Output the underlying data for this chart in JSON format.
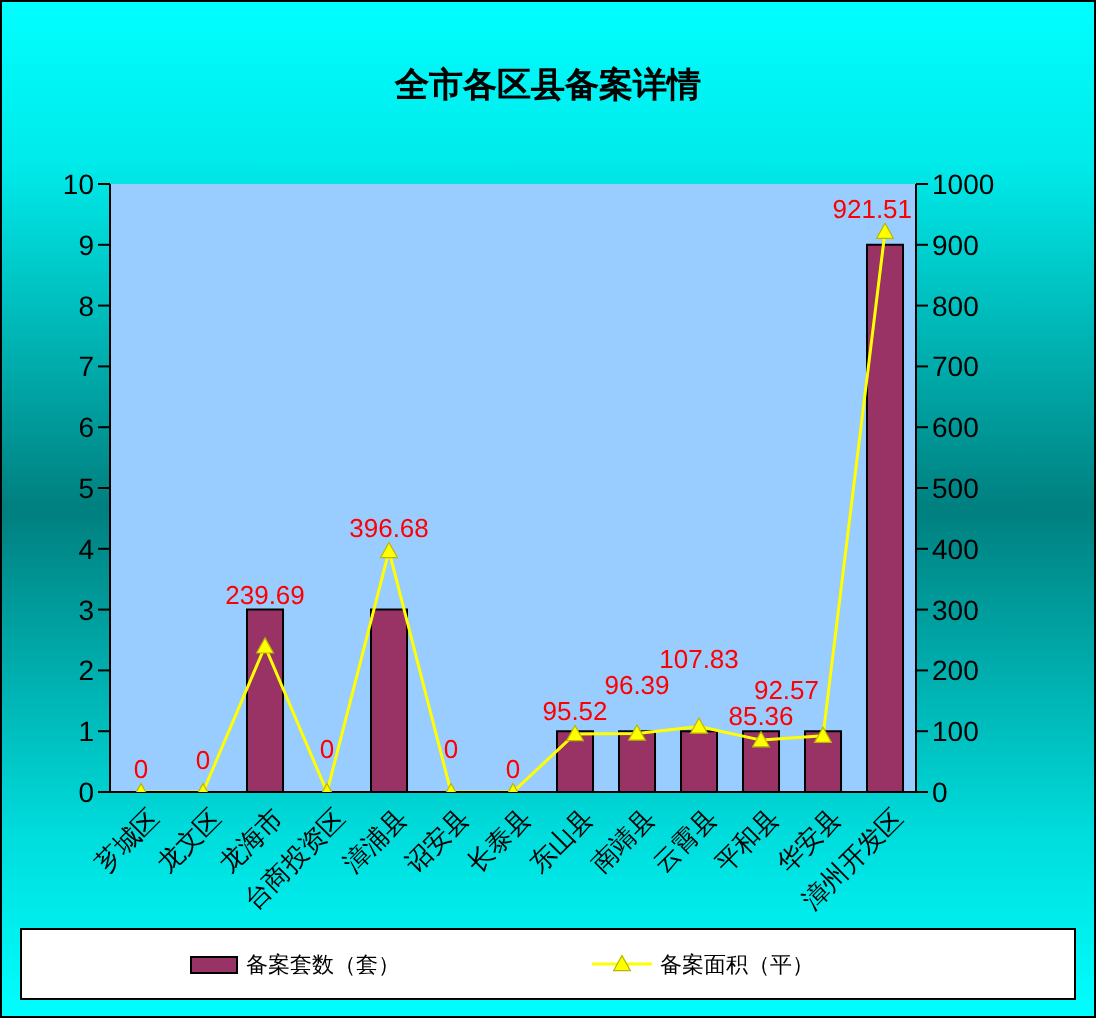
{
  "chart_data": {
    "type": "bar",
    "title": "全市各区县备案详情",
    "categories": [
      "芗城区",
      "龙文区",
      "龙海市",
      "台商投资区",
      "漳浦县",
      "诏安县",
      "长泰县",
      "东山县",
      "南靖县",
      "云霄县",
      "平和县",
      "华安县",
      "漳州开发区"
    ],
    "series": [
      {
        "name": "备案套数（套）",
        "color": "#993366",
        "values": [
          0,
          0,
          3,
          0,
          3,
          0,
          0,
          1,
          1,
          1,
          1,
          1,
          9
        ]
      },
      {
        "name": "备案面积（平）",
        "type": "line",
        "axis": "y2",
        "color": "#ffff00",
        "values": [
          0,
          0,
          239.69,
          0,
          396.68,
          0,
          0,
          95.52,
          96.39,
          107.83,
          85.36,
          92.57,
          921.51
        ],
        "value_labels": [
          "0",
          "0",
          "239.69",
          "0",
          "396.68",
          "0",
          "0",
          "95.52",
          "96.39",
          "107.83",
          "85.36",
          "92.57",
          "921.51"
        ]
      }
    ],
    "ylim": [
      0,
      10
    ],
    "yticks": [
      0,
      1,
      2,
      3,
      4,
      5,
      6,
      7,
      8,
      9,
      10
    ],
    "y2lim": [
      0,
      1000
    ],
    "y2ticks": [
      0,
      100,
      200,
      300,
      400,
      500,
      600,
      700,
      800,
      900,
      1000
    ],
    "marker": "triangle",
    "legend": "bottom"
  }
}
